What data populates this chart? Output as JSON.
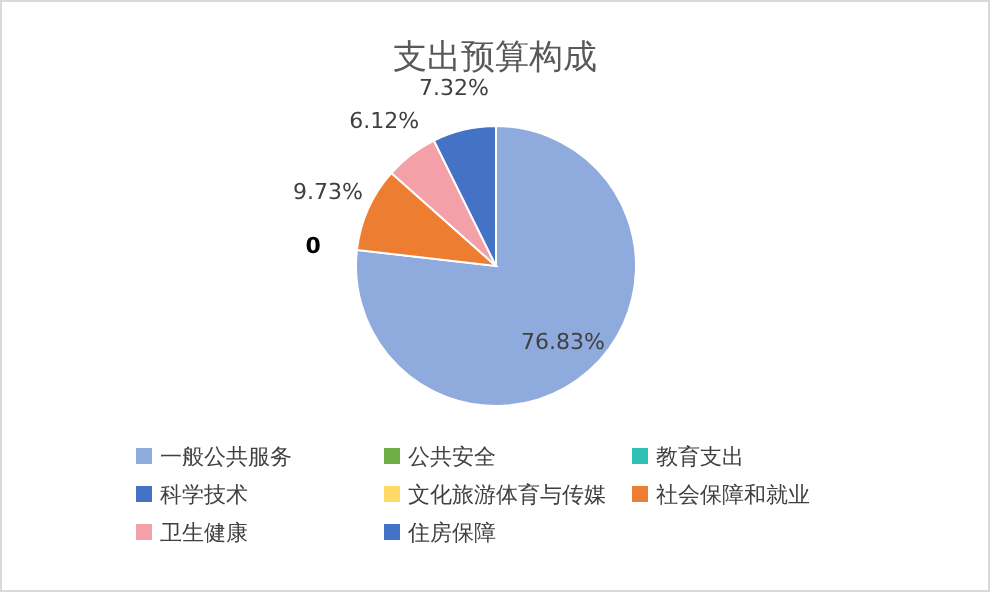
{
  "chart_data": {
    "type": "pie",
    "title": "支出预算构成",
    "categories": [
      "一般公共服务",
      "公共安全",
      "教育支出",
      "科学技术",
      "文化旅游体育与传媒",
      "社会保障和就业",
      "卫生健康",
      "住房保障"
    ],
    "values": [
      76.83,
      0,
      0,
      0,
      0,
      9.73,
      6.12,
      7.32
    ],
    "colors": [
      "#8faadc",
      "#70ad47",
      "#2fbfb3",
      "#4472c4",
      "#ffd966",
      "#ed7d31",
      "#f4a0a8",
      "#4472c4"
    ],
    "value_labels": [
      "76.83%",
      "0",
      null,
      null,
      null,
      "9.73%",
      "6.12%",
      "7.32%"
    ],
    "legend": "bottom"
  }
}
